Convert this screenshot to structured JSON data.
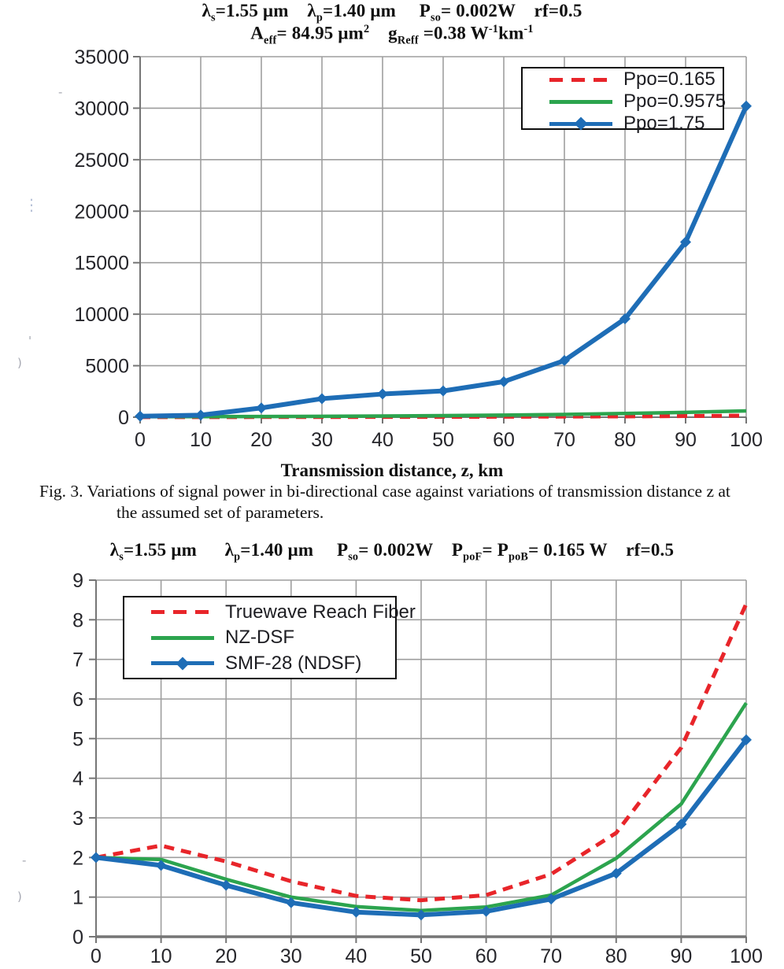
{
  "page": {
    "background": "#ffffff"
  },
  "colors": {
    "series_red": "#e8252a",
    "series_green": "#2ca44e",
    "series_blue": "#1e6db6",
    "grid": "#9e9e9e",
    "axis": "#757575",
    "tick_text": "#26262b",
    "legend_border": "#0e0e0e"
  },
  "titles": {
    "fig3_line1": [
      {
        "t": "λ"
      },
      {
        "sub": "s"
      },
      {
        "t": "=1.55 μm    "
      },
      {
        "t": "λ"
      },
      {
        "sub": "p"
      },
      {
        "t": "=1.40 μm     "
      },
      {
        "t": "P"
      },
      {
        "sub": "so"
      },
      {
        "t": "= 0.002W    "
      },
      {
        "t": "rf=0.5"
      }
    ],
    "fig3_line2": [
      {
        "t": "A"
      },
      {
        "sub": "eff"
      },
      {
        "t": "= 84.95 μm"
      },
      {
        "sup": "2"
      },
      {
        "t": "    "
      },
      {
        "t": "g"
      },
      {
        "sub": "Reff"
      },
      {
        "t": " =0.38 W"
      },
      {
        "sup": "-1"
      },
      {
        "t": "km"
      },
      {
        "sup": "-1"
      }
    ],
    "fig4_title": [
      {
        "t": "λ"
      },
      {
        "sub": "s"
      },
      {
        "t": "=1.55 μm      "
      },
      {
        "t": "λ"
      },
      {
        "sub": "p"
      },
      {
        "t": "=1.40 μm     "
      },
      {
        "t": "P"
      },
      {
        "sub": "so"
      },
      {
        "t": "= 0.002W    "
      },
      {
        "t": "P"
      },
      {
        "sub": "poF"
      },
      {
        "t": "= "
      },
      {
        "t": "P"
      },
      {
        "sub": "poB"
      },
      {
        "t": "= 0.165 W    "
      },
      {
        "t": "rf=0.5"
      }
    ]
  },
  "caption": {
    "line1": "Fig. 3. Variations of signal power in bi-directional case against variations of transmission distance z at",
    "line2": "the assumed set of parameters."
  },
  "artifacts": [
    "-",
    "⋮",
    "'",
    ")",
    "-",
    ")"
  ],
  "chart_data": [
    {
      "type": "line",
      "title": "λs=1.55 μm  λp=1.40 μm  Pso= 0.002W  rf=0.5 ; Aeff= 84.95 μm2  gReff =0.38 W-1km-1",
      "xlabel": "Transmission distance, z, km",
      "ylabel": "",
      "x": [
        0,
        10,
        20,
        30,
        40,
        50,
        60,
        70,
        80,
        90,
        100
      ],
      "xlim": [
        0,
        100
      ],
      "ylim": [
        0,
        35000
      ],
      "xtick": 10,
      "ytick": 5000,
      "grid": true,
      "legend_position": "top-right",
      "series": [
        {
          "name": "Ppo=0.165",
          "color": "#e8252a",
          "line": "dashed",
          "marker": "none",
          "values": [
            10,
            12,
            15,
            20,
            26,
            34,
            45,
            60,
            80,
            110,
            150
          ]
        },
        {
          "name": "Ppo=0.9575",
          "color": "#2ca44e",
          "line": "solid",
          "marker": "none",
          "values": [
            50,
            55,
            65,
            85,
            110,
            150,
            200,
            270,
            360,
            470,
            610
          ]
        },
        {
          "name": "Ppo=1.75",
          "color": "#1e6db6",
          "line": "solid",
          "marker": "diamond",
          "values": [
            100,
            200,
            900,
            1800,
            2250,
            2550,
            3450,
            5500,
            9550,
            17000,
            30200
          ]
        }
      ]
    },
    {
      "type": "line",
      "title": "λs=1.55 μm  λp=1.40 μm  Pso= 0.002W  PpoF= PpoB= 0.165 W  rf=0.5",
      "xlabel": "",
      "ylabel": "",
      "x": [
        0,
        10,
        20,
        30,
        40,
        50,
        60,
        70,
        80,
        90,
        100
      ],
      "xlim": [
        0,
        100
      ],
      "ylim": [
        0,
        9
      ],
      "xtick": 10,
      "ytick": 1,
      "grid": true,
      "legend_position": "top-left",
      "series": [
        {
          "name": "Truewave Reach Fiber",
          "color": "#e8252a",
          "line": "dashed",
          "marker": "none",
          "values": [
            2.0,
            2.3,
            1.9,
            1.4,
            1.03,
            0.92,
            1.05,
            1.58,
            2.62,
            4.77,
            8.4
          ]
        },
        {
          "name": "NZ-DSF",
          "color": "#2ca44e",
          "line": "solid",
          "marker": "none",
          "values": [
            2.0,
            1.95,
            1.45,
            1.0,
            0.76,
            0.66,
            0.75,
            1.05,
            1.98,
            3.35,
            5.9
          ]
        },
        {
          "name": "SMF-28 (NDSF)",
          "color": "#1e6db6",
          "line": "solid",
          "marker": "diamond",
          "values": [
            2.0,
            1.8,
            1.3,
            0.86,
            0.62,
            0.55,
            0.64,
            0.95,
            1.6,
            2.84,
            4.97
          ]
        }
      ]
    }
  ]
}
